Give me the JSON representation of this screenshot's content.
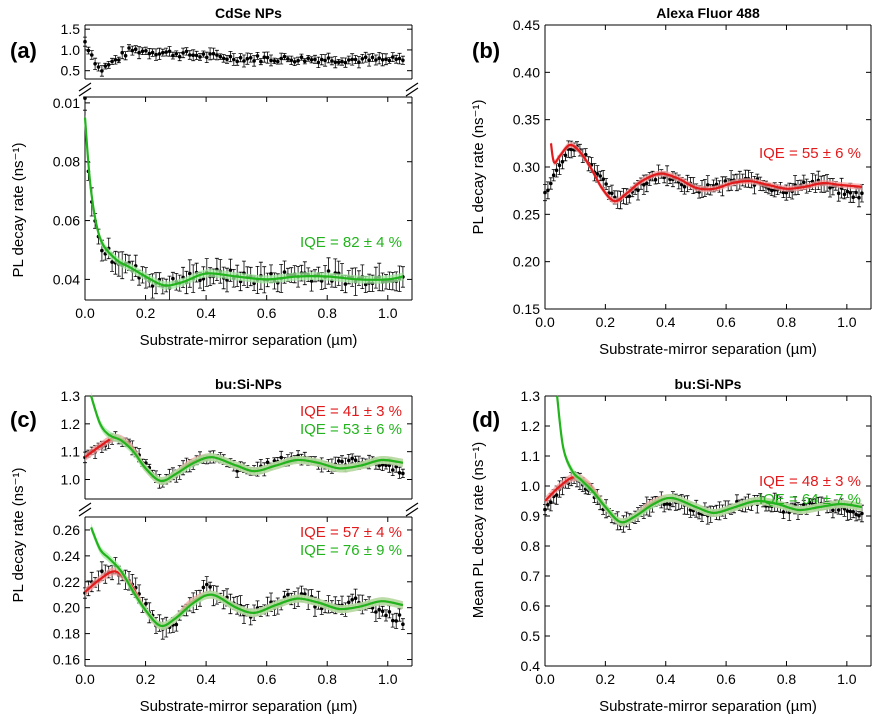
{
  "colors": {
    "data": "#000000",
    "red": "#e31a1c",
    "green": "#22b41c",
    "red_band": "#f4a0a0",
    "green_band": "#a6e8a2"
  },
  "chart_data": [
    {
      "panel": "(a)",
      "type": "scatter",
      "title": "CdSe NPs",
      "xlabel": "Substrate-mirror separation (µm)",
      "ylabel": "PL decay rate (ns⁻¹)",
      "xlim": [
        0.0,
        1.08
      ],
      "xticks": [
        "0.0",
        "0.2",
        "0.4",
        "0.6",
        "0.8",
        "1.0"
      ],
      "broken_axis": true,
      "subplots": [
        {
          "ylim": [
            0.3,
            1.6
          ],
          "yticks": [
            "0.5",
            "1.0",
            "1.5"
          ],
          "data_mean": 0.8,
          "data_note_points": [
            [
              0.0,
              1.2
            ],
            [
              0.05,
              0.5
            ],
            [
              0.15,
              1.0
            ],
            [
              0.5,
              0.8
            ],
            [
              1.05,
              0.75
            ]
          ]
        },
        {
          "ylim": [
            0.033,
            0.102
          ],
          "yticks": [
            "0.04",
            "0.06",
            "0.08",
            "0.01"
          ],
          "series": [
            {
              "name": "measured",
              "x": [
                0.0,
                0.01,
                0.02,
                0.04,
                0.06,
                0.1,
                0.15,
                0.2,
                0.25,
                0.3,
                0.4,
                0.5,
                0.6,
                0.7,
                0.8,
                0.9,
                1.0,
                1.05
              ],
              "y": [
                0.1,
                0.08,
                0.068,
                0.055,
                0.05,
                0.047,
                0.044,
                0.041,
                0.038,
                0.039,
                0.042,
                0.041,
                0.04,
                0.042,
                0.041,
                0.04,
                0.041,
                0.041
              ]
            },
            {
              "name": "fit",
              "x": [
                0.0,
                0.02,
                0.05,
                0.1,
                0.15,
                0.2,
                0.26,
                0.32,
                0.4,
                0.5,
                0.6,
                0.7,
                0.8,
                0.9,
                1.0,
                1.05
              ],
              "y": [
                0.095,
                0.07,
                0.054,
                0.047,
                0.044,
                0.041,
                0.038,
                0.039,
                0.042,
                0.041,
                0.04,
                0.041,
                0.041,
                0.04,
                0.04,
                0.041
              ]
            }
          ],
          "annotations": [
            {
              "text": "IQE = 82 ± 4 %",
              "color": "green"
            }
          ]
        }
      ]
    },
    {
      "panel": "(b)",
      "type": "scatter",
      "title": "Alexa Fluor 488",
      "xlabel": "Substrate-mirror separation (µm)",
      "ylabel": "PL decay rate (ns⁻¹)",
      "xlim": [
        0.0,
        1.08
      ],
      "ylim": [
        0.15,
        0.45
      ],
      "xticks": [
        "0.0",
        "0.2",
        "0.4",
        "0.6",
        "0.8",
        "1.0"
      ],
      "yticks": [
        "0.15",
        "0.20",
        "0.25",
        "0.30",
        "0.35",
        "0.40",
        "0.45"
      ],
      "series": [
        {
          "name": "measured",
          "x": [
            0.0,
            0.03,
            0.06,
            0.09,
            0.12,
            0.16,
            0.2,
            0.23,
            0.27,
            0.32,
            0.37,
            0.4,
            0.45,
            0.5,
            0.55,
            0.6,
            0.65,
            0.7,
            0.75,
            0.8,
            0.85,
            0.9,
            0.95,
            1.0,
            1.05
          ],
          "y": [
            0.27,
            0.29,
            0.31,
            0.322,
            0.318,
            0.3,
            0.28,
            0.265,
            0.27,
            0.282,
            0.29,
            0.293,
            0.285,
            0.276,
            0.278,
            0.282,
            0.286,
            0.284,
            0.278,
            0.276,
            0.28,
            0.285,
            0.278,
            0.272,
            0.27
          ]
        },
        {
          "name": "fit",
          "x": [
            0.02,
            0.03,
            0.05,
            0.08,
            0.11,
            0.15,
            0.19,
            0.23,
            0.27,
            0.32,
            0.38,
            0.44,
            0.5,
            0.56,
            0.62,
            0.68,
            0.74,
            0.8,
            0.86,
            0.92,
            0.98,
            1.05
          ],
          "y": [
            0.325,
            0.305,
            0.312,
            0.323,
            0.318,
            0.3,
            0.277,
            0.264,
            0.272,
            0.285,
            0.293,
            0.288,
            0.278,
            0.277,
            0.283,
            0.285,
            0.281,
            0.277,
            0.279,
            0.283,
            0.281,
            0.279
          ]
        }
      ],
      "annotations": [
        {
          "text": "IQE = 55 ± 6 %",
          "color": "red"
        }
      ]
    },
    {
      "panel": "(c)",
      "type": "scatter",
      "title": "bu:Si-NPs",
      "xlabel": "Substrate-mirror separation (µm)",
      "ylabel": "PL decay rate (ns⁻¹)",
      "xlim": [
        0.0,
        1.08
      ],
      "xticks": [
        "0.0",
        "0.2",
        "0.4",
        "0.6",
        "0.8",
        "1.0"
      ],
      "broken_axis": true,
      "subplots": [
        {
          "ylim": [
            0.93,
            1.3
          ],
          "yticks": [
            "1.0",
            "1.1",
            "1.2",
            "1.3"
          ],
          "series": [
            {
              "name": "measured",
              "x": [
                0.0,
                0.05,
                0.1,
                0.15,
                0.2,
                0.25,
                0.3,
                0.35,
                0.4,
                0.45,
                0.5,
                0.55,
                0.6,
                0.65,
                0.7,
                0.75,
                0.8,
                0.85,
                0.9,
                0.95,
                1.0,
                1.05
              ],
              "y": [
                1.08,
                1.12,
                1.15,
                1.13,
                1.05,
                0.99,
                1.02,
                1.06,
                1.08,
                1.07,
                1.04,
                1.03,
                1.05,
                1.07,
                1.08,
                1.07,
                1.05,
                1.06,
                1.07,
                1.06,
                1.05,
                1.03
              ]
            },
            {
              "name": "fit red",
              "x": [
                0.0,
                0.05,
                0.1,
                0.15,
                0.2,
                0.25,
                0.3,
                0.35,
                0.42,
                0.5,
                0.56,
                0.63,
                0.7,
                0.77,
                0.84,
                0.91,
                0.98,
                1.05
              ],
              "y": [
                1.08,
                1.12,
                1.15,
                1.12,
                1.04,
                0.995,
                1.02,
                1.06,
                1.08,
                1.05,
                1.03,
                1.05,
                1.07,
                1.06,
                1.04,
                1.05,
                1.07,
                1.06
              ]
            },
            {
              "name": "fit green",
              "x": [
                0.02,
                0.05,
                0.08,
                0.12,
                0.16,
                0.2,
                0.25,
                0.3,
                0.36,
                0.42,
                0.5,
                0.56,
                0.63,
                0.7,
                0.77,
                0.84,
                0.91,
                0.98,
                1.05
              ],
              "y": [
                1.3,
                1.2,
                1.16,
                1.14,
                1.1,
                1.04,
                0.995,
                1.02,
                1.06,
                1.08,
                1.05,
                1.03,
                1.05,
                1.07,
                1.06,
                1.04,
                1.05,
                1.07,
                1.06
              ]
            }
          ],
          "annotations": [
            {
              "text": "IQE = 41 ± 3 %",
              "color": "red"
            },
            {
              "text": "IQE = 53 ± 6 %",
              "color": "green"
            }
          ]
        },
        {
          "ylim": [
            0.155,
            0.27
          ],
          "yticks": [
            "0.16",
            "0.18",
            "0.20",
            "0.22",
            "0.24",
            "0.26"
          ],
          "series": [
            {
              "name": "measured",
              "x": [
                0.0,
                0.05,
                0.1,
                0.15,
                0.2,
                0.25,
                0.3,
                0.35,
                0.4,
                0.45,
                0.5,
                0.55,
                0.6,
                0.65,
                0.7,
                0.75,
                0.8,
                0.85,
                0.9,
                0.95,
                1.0,
                1.05
              ],
              "y": [
                0.21,
                0.225,
                0.23,
                0.22,
                0.2,
                0.185,
                0.19,
                0.2,
                0.215,
                0.21,
                0.2,
                0.195,
                0.2,
                0.205,
                0.21,
                0.205,
                0.2,
                0.2,
                0.205,
                0.2,
                0.195,
                0.19
              ]
            },
            {
              "name": "fit red",
              "x": [
                0.0,
                0.05,
                0.1,
                0.15,
                0.2,
                0.25,
                0.3,
                0.35,
                0.42,
                0.5,
                0.56,
                0.63,
                0.7,
                0.77,
                0.84,
                0.91,
                0.98,
                1.05
              ],
              "y": [
                0.212,
                0.222,
                0.228,
                0.218,
                0.198,
                0.186,
                0.192,
                0.204,
                0.21,
                0.2,
                0.196,
                0.202,
                0.207,
                0.204,
                0.199,
                0.201,
                0.205,
                0.202
              ]
            },
            {
              "name": "fit green",
              "x": [
                0.02,
                0.05,
                0.08,
                0.12,
                0.16,
                0.2,
                0.25,
                0.3,
                0.36,
                0.42,
                0.5,
                0.56,
                0.63,
                0.7,
                0.77,
                0.84,
                0.91,
                0.98,
                1.05
              ],
              "y": [
                0.262,
                0.245,
                0.238,
                0.228,
                0.212,
                0.198,
                0.186,
                0.192,
                0.204,
                0.21,
                0.2,
                0.196,
                0.202,
                0.207,
                0.204,
                0.199,
                0.201,
                0.205,
                0.202
              ]
            }
          ],
          "annotations": [
            {
              "text": "IQE = 57 ± 4 %",
              "color": "red"
            },
            {
              "text": "IQE = 76 ± 9 %",
              "color": "green"
            }
          ]
        }
      ]
    },
    {
      "panel": "(d)",
      "type": "scatter",
      "title": "bu:Si-NPs",
      "xlabel": "Substrate-mirror separation (µm)",
      "ylabel": "Mean PL decay rate (ns⁻¹)",
      "xlim": [
        0.0,
        1.08
      ],
      "ylim": [
        0.4,
        1.3
      ],
      "xticks": [
        "0.0",
        "0.2",
        "0.4",
        "0.6",
        "0.8",
        "1.0"
      ],
      "yticks": [
        "0.4",
        "0.5",
        "0.6",
        "0.7",
        "0.8",
        "0.9",
        "1.0",
        "1.1",
        "1.2",
        "1.3"
      ],
      "series": [
        {
          "name": "measured",
          "x": [
            0.0,
            0.05,
            0.1,
            0.15,
            0.2,
            0.25,
            0.3,
            0.35,
            0.4,
            0.45,
            0.5,
            0.55,
            0.6,
            0.65,
            0.7,
            0.75,
            0.8,
            0.85,
            0.9,
            0.95,
            1.0,
            1.05
          ],
          "y": [
            0.93,
            0.99,
            1.02,
            0.99,
            0.92,
            0.87,
            0.89,
            0.94,
            0.95,
            0.94,
            0.92,
            0.91,
            0.93,
            0.94,
            0.95,
            0.94,
            0.92,
            0.93,
            0.94,
            0.93,
            0.92,
            0.91
          ]
        },
        {
          "name": "fit red",
          "x": [
            0.0,
            0.05,
            0.1,
            0.15,
            0.2,
            0.25,
            0.3,
            0.35,
            0.42,
            0.5,
            0.56,
            0.63,
            0.7,
            0.77,
            0.84,
            0.91,
            0.98,
            1.05
          ],
          "y": [
            0.95,
            1.0,
            1.03,
            1.0,
            0.93,
            0.88,
            0.9,
            0.94,
            0.96,
            0.93,
            0.91,
            0.93,
            0.95,
            0.94,
            0.92,
            0.93,
            0.94,
            0.93
          ]
        },
        {
          "name": "fit green",
          "x": [
            0.04,
            0.06,
            0.09,
            0.12,
            0.16,
            0.2,
            0.25,
            0.3,
            0.36,
            0.42,
            0.5,
            0.56,
            0.63,
            0.7,
            0.77,
            0.84,
            0.91,
            0.98,
            1.05
          ],
          "y": [
            1.3,
            1.13,
            1.05,
            1.02,
            0.98,
            0.93,
            0.88,
            0.9,
            0.94,
            0.96,
            0.93,
            0.91,
            0.93,
            0.95,
            0.94,
            0.92,
            0.93,
            0.94,
            0.93
          ]
        }
      ],
      "annotations": [
        {
          "text": "IQE = 48 ± 3 %",
          "color": "red"
        },
        {
          "text": "IQE = 64 ± 7 %",
          "color": "green"
        }
      ]
    }
  ]
}
